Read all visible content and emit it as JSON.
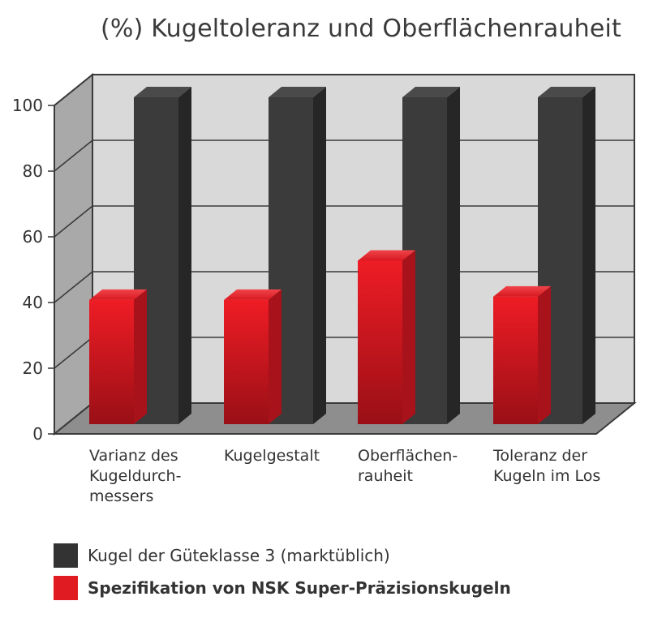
{
  "chart_data": {
    "type": "bar",
    "title": "(%)   Kugeltoleranz und Oberflächenrauheit",
    "categories": [
      [
        "Varianz des",
        "Kugeldurch-",
        "messers"
      ],
      [
        "Kugelgestalt"
      ],
      [
        "Oberflächen-",
        "rauheit"
      ],
      [
        "Toleranz der",
        "Kugeln im Los"
      ]
    ],
    "yticks": [
      "0",
      "20",
      "40",
      "60",
      "80",
      "100"
    ],
    "ylim": [
      0,
      100
    ],
    "grid": true,
    "series": [
      {
        "name": "Spezifikation von NSK Super-Präzisionskugeln",
        "color": "#e11b22",
        "values": [
          38,
          38,
          50,
          39
        ]
      },
      {
        "name": "Kugel der Güteklasse 3 (marktüblich)",
        "color": "#3a3a3a",
        "values": [
          100,
          100,
          100,
          100
        ]
      }
    ],
    "legend": [
      {
        "label": "Kugel der Güteklasse 3 (marktüblich)",
        "color": "#333333",
        "bold": false
      },
      {
        "label": "Spezifikation von NSK Super-Präzisionskugeln",
        "color": "#e11b22",
        "bold": true
      }
    ],
    "legend_position": "bottom"
  }
}
